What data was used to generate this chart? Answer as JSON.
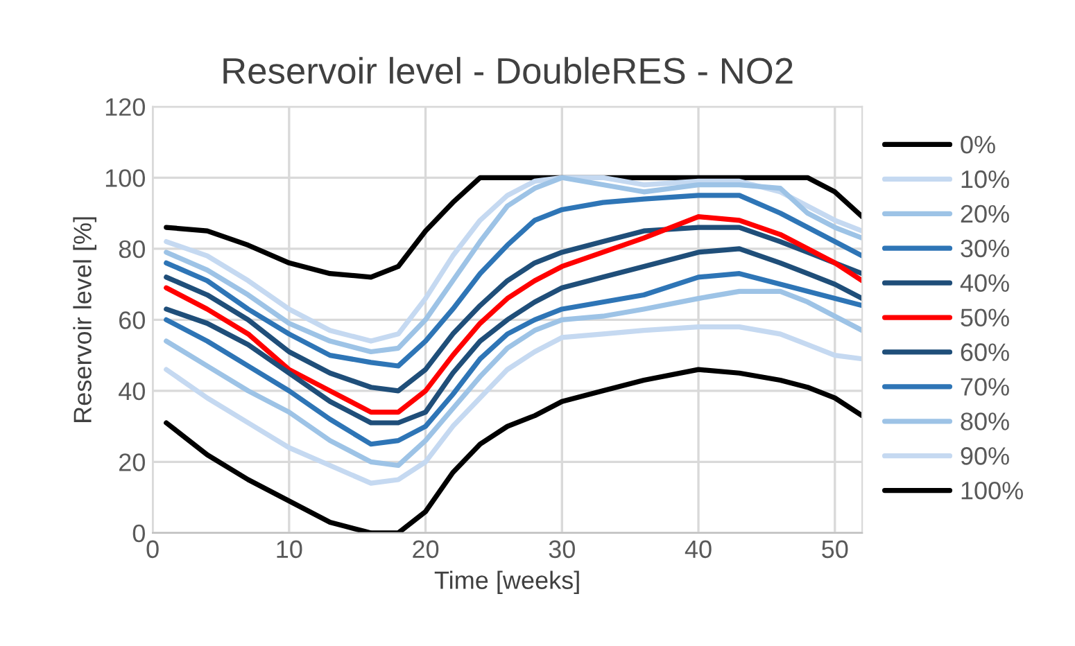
{
  "chart_data": {
    "type": "line",
    "title": "Reservoir level - DoubleRES - NO2",
    "xlabel": "Time [weeks]",
    "ylabel": "Reservoir level [%]",
    "x": [
      1,
      4,
      7,
      10,
      13,
      16,
      18,
      20,
      22,
      24,
      26,
      28,
      30,
      33,
      36,
      40,
      43,
      46,
      48,
      50,
      52
    ],
    "series": [
      {
        "name": "0%",
        "color": "#000000",
        "values": [
          86,
          85,
          81,
          76,
          73,
          72,
          75,
          85,
          93,
          100,
          100,
          100,
          100,
          100,
          100,
          100,
          100,
          100,
          100,
          96,
          89
        ]
      },
      {
        "name": "10%",
        "color": "#c5d9f1",
        "values": [
          82,
          78,
          71,
          63,
          57,
          54,
          56,
          66,
          78,
          88,
          95,
          99,
          100,
          100,
          98,
          99,
          99,
          96,
          92,
          88,
          85
        ]
      },
      {
        "name": "20%",
        "color": "#9dc3e6",
        "values": [
          79,
          74,
          67,
          59,
          54,
          51,
          52,
          60,
          71,
          82,
          92,
          97,
          100,
          98,
          96,
          98,
          98,
          97,
          90,
          86,
          83
        ]
      },
      {
        "name": "30%",
        "color": "#2e75b6",
        "values": [
          76,
          71,
          63,
          56,
          50,
          48,
          47,
          54,
          63,
          73,
          81,
          88,
          91,
          93,
          94,
          95,
          95,
          90,
          86,
          82,
          78
        ]
      },
      {
        "name": "40%",
        "color": "#1f4e79",
        "values": [
          72,
          67,
          60,
          51,
          45,
          41,
          40,
          46,
          56,
          64,
          71,
          76,
          79,
          82,
          85,
          86,
          86,
          82,
          79,
          76,
          73
        ]
      },
      {
        "name": "50%",
        "color": "#ff0000",
        "values": [
          69,
          63,
          56,
          46,
          40,
          34,
          34,
          40,
          50,
          59,
          66,
          71,
          75,
          79,
          83,
          89,
          88,
          84,
          80,
          76,
          71
        ]
      },
      {
        "name": "60%",
        "color": "#1f4e79",
        "values": [
          63,
          59,
          53,
          45,
          37,
          31,
          31,
          34,
          45,
          54,
          60,
          65,
          69,
          72,
          75,
          79,
          80,
          76,
          73,
          70,
          66
        ]
      },
      {
        "name": "70%",
        "color": "#2e75b6",
        "values": [
          60,
          54,
          47,
          40,
          32,
          25,
          26,
          30,
          39,
          49,
          56,
          60,
          63,
          65,
          67,
          72,
          73,
          70,
          68,
          66,
          64
        ]
      },
      {
        "name": "80%",
        "color": "#9dc3e6",
        "values": [
          54,
          47,
          40,
          34,
          26,
          20,
          19,
          26,
          35,
          44,
          52,
          57,
          60,
          61,
          63,
          66,
          68,
          68,
          65,
          61,
          57
        ]
      },
      {
        "name": "90%",
        "color": "#c5d9f1",
        "values": [
          46,
          38,
          31,
          24,
          19,
          14,
          15,
          20,
          30,
          38,
          46,
          51,
          55,
          56,
          57,
          58,
          58,
          56,
          53,
          50,
          49
        ]
      },
      {
        "name": "100%",
        "color": "#000000",
        "values": [
          31,
          22,
          15,
          9,
          3,
          0,
          0,
          6,
          17,
          25,
          30,
          33,
          37,
          40,
          43,
          46,
          45,
          43,
          41,
          38,
          33
        ]
      }
    ],
    "xlim": [
      0,
      52
    ],
    "xticks": [
      0,
      10,
      20,
      30,
      40,
      50
    ],
    "ylim": [
      0,
      120
    ],
    "yticks": [
      0,
      20,
      40,
      60,
      80,
      100,
      120
    ],
    "grid": true,
    "legend": "right",
    "line_style": "solid",
    "marker": "none"
  }
}
